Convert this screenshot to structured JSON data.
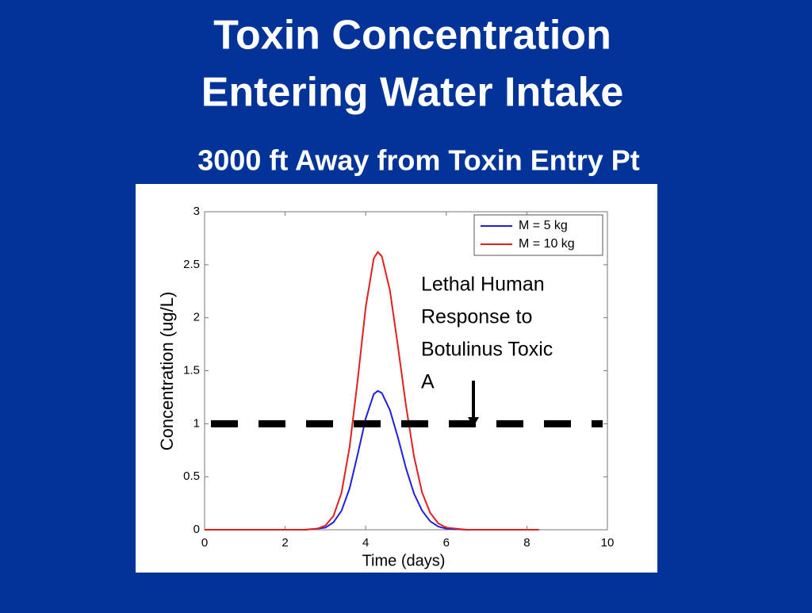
{
  "chart_data": {
    "type": "line",
    "title": [
      "Toxin Concentration",
      "Entering Water Intake"
    ],
    "subtitle": "3000 ft Away from Toxin Entry Pt",
    "xlabel": "Time (days)",
    "ylabel": "Concentration (ug/L)",
    "x": [
      0,
      1,
      2,
      2.5,
      2.8,
      3,
      3.2,
      3.4,
      3.6,
      3.8,
      4,
      4.2,
      4.3,
      4.4,
      4.6,
      4.8,
      5,
      5.2,
      5.4,
      5.6,
      5.8,
      6,
      6.5,
      7,
      8,
      8.3
    ],
    "series": [
      {
        "name": "M = 5 kg",
        "color": "#1f1fe0",
        "values": [
          0,
          0,
          0,
          0,
          0.01,
          0.02,
          0.07,
          0.18,
          0.39,
          0.71,
          1.05,
          1.28,
          1.31,
          1.29,
          1.13,
          0.87,
          0.58,
          0.34,
          0.18,
          0.08,
          0.03,
          0.01,
          0,
          0,
          0,
          0
        ]
      },
      {
        "name": "M = 10 kg",
        "color": "#e0201f",
        "values": [
          0,
          0,
          0,
          0,
          0.01,
          0.04,
          0.13,
          0.35,
          0.78,
          1.41,
          2.1,
          2.56,
          2.62,
          2.58,
          2.26,
          1.73,
          1.17,
          0.69,
          0.35,
          0.16,
          0.06,
          0.02,
          0,
          0,
          0,
          0
        ]
      }
    ],
    "threshold": 1,
    "annotation": [
      "Lethal Human",
      "Response to",
      "Botulinus Toxic",
      "A"
    ],
    "xlim": [
      0,
      10
    ],
    "xticks": [
      0,
      2,
      4,
      6,
      8,
      10
    ],
    "ylim": [
      0,
      3
    ],
    "yticks": [
      0,
      0.5,
      1,
      1.5,
      2,
      2.5,
      3
    ],
    "legend": "upper right"
  }
}
